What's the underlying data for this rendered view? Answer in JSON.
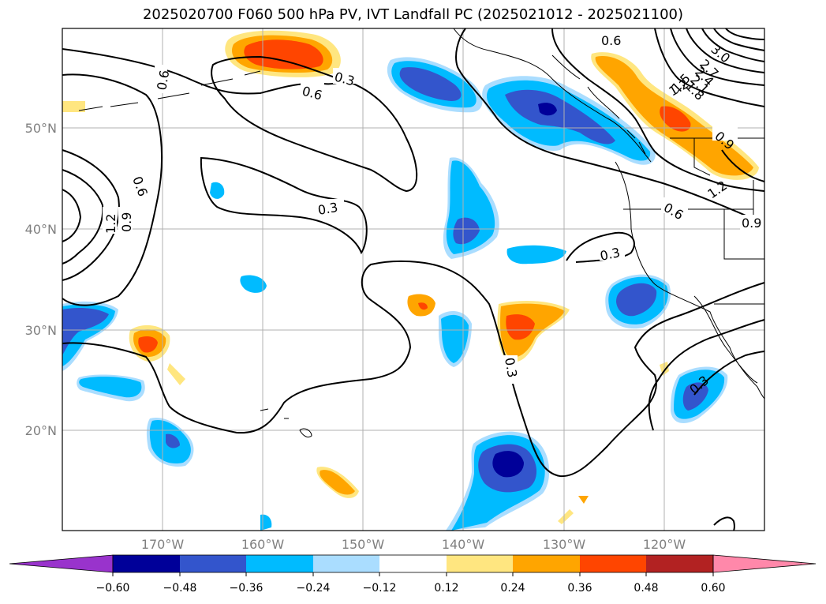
{
  "title": "2025020700 F060 500 hPa PV, IVT Landfall PC (2025021012 - 2025021100)",
  "axes": {
    "lat_labels": [
      "50°N",
      "40°N",
      "30°N",
      "20°N"
    ],
    "lon_labels": [
      "170°W",
      "160°W",
      "150°W",
      "140°W",
      "130°W",
      "120°W"
    ]
  },
  "colorbar": {
    "colors": [
      "#9933cc",
      "#000099",
      "#3355cc",
      "#00bbff",
      "#aaddff",
      "#ffffff",
      "#ffe680",
      "#ffa500",
      "#ff4500",
      "#b22222",
      "#ff88aa"
    ],
    "tick_labels": [
      "−0.60",
      "−0.48",
      "−0.36",
      "−0.24",
      "−0.12",
      "0.12",
      "0.24",
      "0.36",
      "0.48",
      "0.60"
    ]
  },
  "contour_labels": [
    "0.6",
    "0.3",
    "0.6",
    "0.6",
    "3.0",
    "2.7",
    "2.4",
    "2.1",
    "1.8",
    "1.5",
    "1.2",
    "0.9",
    "1.2",
    "0.6",
    "0.9",
    "0.6",
    "0.9",
    "1.2",
    "0.3",
    "0.3",
    "0.3",
    "0.3"
  ]
}
